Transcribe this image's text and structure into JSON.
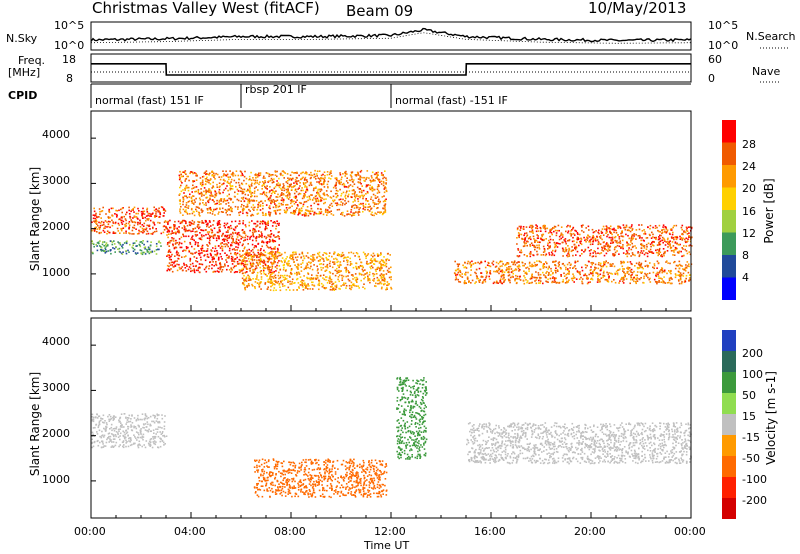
{
  "header": {
    "title": "Christmas Valley West (fitACF)",
    "beam": "Beam 09",
    "date": "10/May/2013"
  },
  "strips": {
    "nsky_label": "N.Sky",
    "nsky_ticks": [
      "10^5",
      "10^0"
    ],
    "nsearch_label": "N.Search",
    "nsearch_ticks": [
      "10^5",
      "10^0"
    ],
    "freq_label": "Freq.",
    "freq_unit": "[MHz]",
    "freq_ticks": [
      "18",
      "8"
    ],
    "nave_label": "Nave",
    "nave_ticks": [
      "60",
      "0"
    ],
    "cpid_label": "CPID",
    "cpid_segments": [
      {
        "label": "normal (fast) 151 IF",
        "start_h": 0,
        "end_h": 6
      },
      {
        "label": "rbsp 201 IF",
        "start_h": 6,
        "end_h": 12
      },
      {
        "label": "normal (fast) -151 IF",
        "start_h": 12,
        "end_h": 24
      }
    ]
  },
  "panels": {
    "slant_ylabel": "Slant Range [km]",
    "slant_ticks": [
      "4000",
      "3000",
      "2000",
      "1000"
    ],
    "power_label": "Power [dB]",
    "power_ticks": [
      "28",
      "24",
      "20",
      "16",
      "12",
      "8",
      "4"
    ],
    "velocity_label": "Velocity [m s-1]",
    "velocity_ticks": [
      "200",
      "100",
      "50",
      "15",
      "-15",
      "-50",
      "-100",
      "-200"
    ],
    "x_ticks": [
      "00:00",
      "04:00",
      "08:00",
      "12:00",
      "16:00",
      "20:00",
      "00:00"
    ],
    "xlabel": "Time UT"
  },
  "colors": {
    "power_scale": [
      "#ff0000",
      "#f05a00",
      "#ff9a00",
      "#ffd000",
      "#a0d040",
      "#3c9a5a",
      "#204a9a",
      "#0000ff"
    ],
    "velocity_scale": [
      "#2040c0",
      "#2a6a5a",
      "#3c9a3c",
      "#90dd50",
      "#c0c0c0",
      "#ff9a00",
      "#ff6a00",
      "#ff2000",
      "#d40000"
    ],
    "ground_scatter": "#c0c0c0"
  },
  "chart_data": {
    "type": "heatmap",
    "x_range_hours": [
      0,
      24
    ],
    "y_range_km": [
      180,
      4600
    ],
    "power_range_db": [
      0,
      32
    ],
    "velocity_range_ms": [
      -250,
      250
    ],
    "nsky_profile": [
      {
        "t": 0,
        "v": 1.8
      },
      {
        "t": 3,
        "v": 2.0
      },
      {
        "t": 6,
        "v": 2.4
      },
      {
        "t": 9,
        "v": 2.4
      },
      {
        "t": 12,
        "v": 2.6
      },
      {
        "t": 13.3,
        "v": 3.6
      },
      {
        "t": 15,
        "v": 2.4
      },
      {
        "t": 18,
        "v": 1.9
      },
      {
        "t": 21,
        "v": 1.7
      },
      {
        "t": 24,
        "v": 1.8
      }
    ],
    "freq_profile": [
      {
        "t": 0,
        "mhz": 14.5
      },
      {
        "t": 3,
        "mhz": 14.5
      },
      {
        "t": 3.01,
        "mhz": 10.5
      },
      {
        "t": 15,
        "mhz": 10.5
      },
      {
        "t": 15.01,
        "mhz": 14.5
      },
      {
        "t": 24,
        "mhz": 14.5
      }
    ],
    "power_features": [
      {
        "name": "early-band",
        "t0": 0,
        "t1": 3,
        "r0": 1900,
        "r1": 2500,
        "db": 26
      },
      {
        "name": "early-lower",
        "t0": 0,
        "t1": 2.8,
        "r0": 1450,
        "r1": 1750,
        "db": 10
      },
      {
        "name": "morning-rising",
        "t0": 3,
        "t1": 7.5,
        "r0": 1050,
        "r1": 2200,
        "db": 28
      },
      {
        "name": "upper-arc",
        "t0": 3.5,
        "t1": 11.8,
        "r0": 2300,
        "r1": 3300,
        "db": 24
      },
      {
        "name": "mid-band",
        "t0": 6,
        "t1": 12,
        "r0": 650,
        "r1": 1500,
        "db": 22
      },
      {
        "name": "post-noon-low",
        "t0": 14.5,
        "t1": 24,
        "r0": 800,
        "r1": 1300,
        "db": 24
      },
      {
        "name": "evening-band",
        "t0": 17,
        "t1": 24,
        "r0": 1400,
        "r1": 2100,
        "db": 26
      }
    ],
    "velocity_features": [
      {
        "name": "gs-early",
        "t0": 0,
        "t1": 3,
        "r0": 1750,
        "r1": 2500,
        "v": 0
      },
      {
        "name": "orange-band",
        "t0": 6.5,
        "t1": 11.8,
        "r0": 650,
        "r1": 1500,
        "v": -60
      },
      {
        "name": "green-streak",
        "t0": 12.2,
        "t1": 13.4,
        "r0": 1500,
        "r1": 3300,
        "v": 40
      },
      {
        "name": "gs-evening",
        "t0": 15,
        "t1": 24,
        "r0": 1400,
        "r1": 2300,
        "v": 0
      }
    ]
  }
}
